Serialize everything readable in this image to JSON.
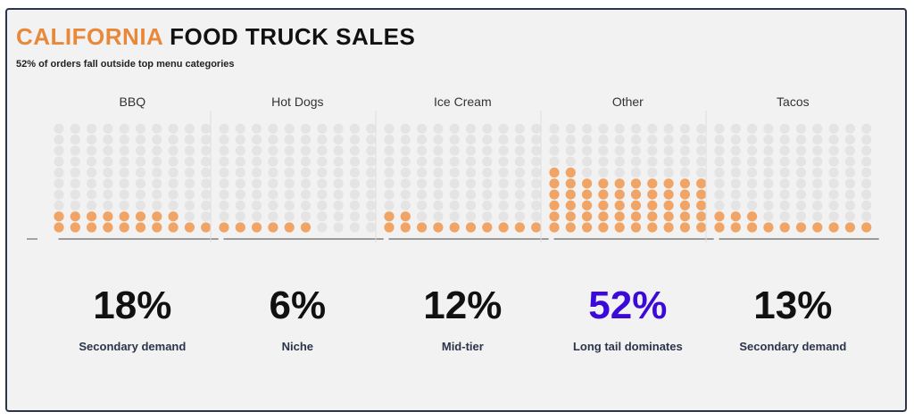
{
  "header": {
    "title_accent": "CALIFORNIA",
    "title_rest": "FOOD TRUCK SALES",
    "subtitle": "52% of orders fall outside top menu categories"
  },
  "colors": {
    "filled": "#f0a466",
    "empty": "#e4e4e4",
    "accent": "#e8893a",
    "highlight": "#3b0ad8"
  },
  "chart_data": {
    "type": "waffle",
    "title": "CALIFORNIA FOOD TRUCK SALES",
    "subtitle": "52% of orders fall outside top menu categories",
    "categories": [
      "BBQ",
      "Hot Dogs",
      "Ice Cream",
      "Other",
      "Tacos"
    ],
    "values": [
      18,
      6,
      12,
      52,
      13
    ],
    "units": "percent of orders",
    "grid": {
      "columns": 10,
      "rows": 10,
      "total_dots": 100
    },
    "percent_labels": [
      "18%",
      "6%",
      "12%",
      "52%",
      "13%"
    ],
    "descriptions": [
      "Secondary demand",
      "Niche",
      "Mid-tier",
      "Long tail dominates",
      "Secondary demand"
    ],
    "highlighted_category": "Other"
  }
}
